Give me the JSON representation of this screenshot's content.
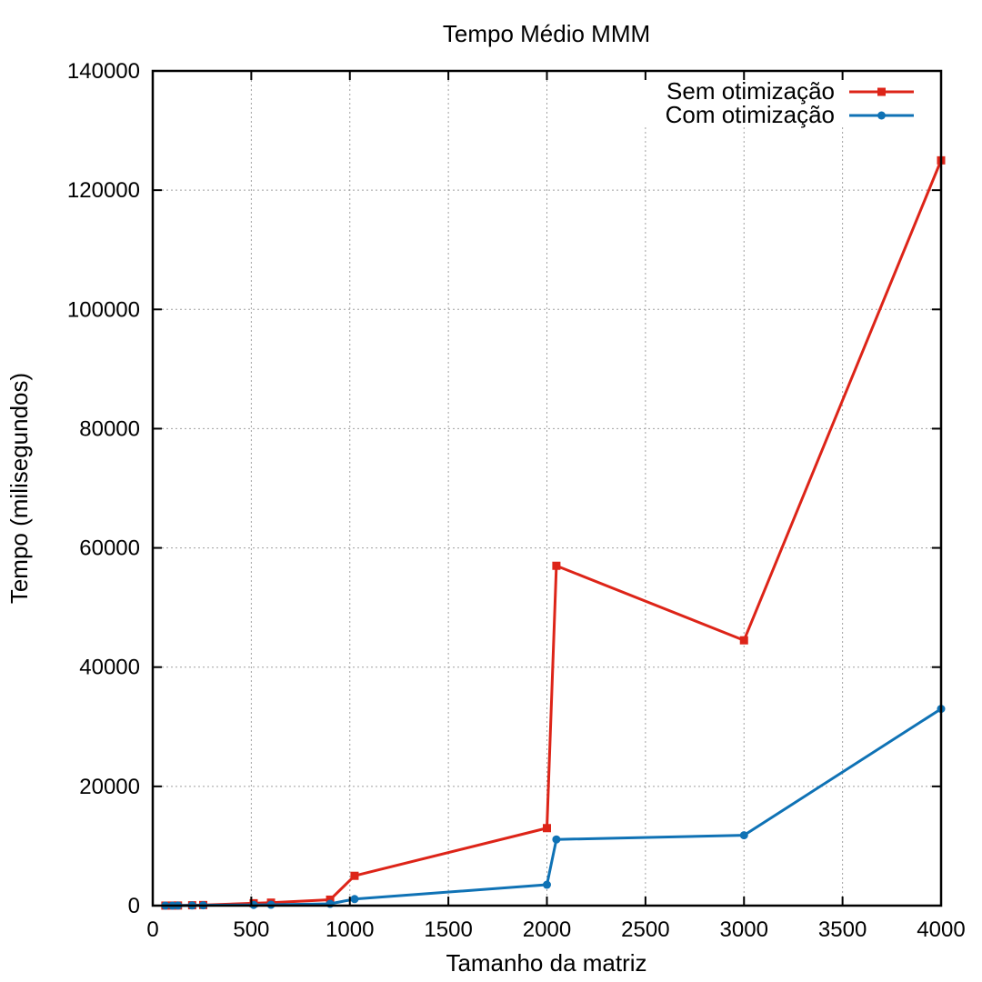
{
  "chart_data": {
    "type": "line",
    "title": "Tempo Médio MMM",
    "xlabel": "Tamanho da matriz",
    "ylabel": "Tempo (milisegundos)",
    "xlim": [
      0,
      4000
    ],
    "ylim": [
      0,
      140000
    ],
    "x_ticks": [
      0,
      500,
      1000,
      1500,
      2000,
      2500,
      3000,
      3500,
      4000
    ],
    "y_ticks": [
      0,
      20000,
      40000,
      60000,
      80000,
      100000,
      120000,
      140000
    ],
    "grid": true,
    "legend_position": "top-right",
    "series": [
      {
        "name": "Sem otimização",
        "color": "#dd2418",
        "marker": "square",
        "points": [
          [
            64,
            5
          ],
          [
            100,
            10
          ],
          [
            128,
            20
          ],
          [
            200,
            60
          ],
          [
            256,
            100
          ],
          [
            512,
            400
          ],
          [
            600,
            500
          ],
          [
            900,
            1000
          ],
          [
            1024,
            5000
          ],
          [
            2000,
            13000
          ],
          [
            2048,
            57000
          ],
          [
            3000,
            44500
          ],
          [
            4000,
            125000
          ]
        ]
      },
      {
        "name": "Com otimização",
        "color": "#0f72b5",
        "marker": "circle",
        "points": [
          [
            64,
            3
          ],
          [
            100,
            6
          ],
          [
            128,
            10
          ],
          [
            200,
            30
          ],
          [
            256,
            50
          ],
          [
            512,
            120
          ],
          [
            600,
            150
          ],
          [
            900,
            300
          ],
          [
            1024,
            1100
          ],
          [
            2000,
            3500
          ],
          [
            2048,
            11100
          ],
          [
            3000,
            11800
          ],
          [
            4000,
            33000
          ]
        ]
      }
    ]
  }
}
